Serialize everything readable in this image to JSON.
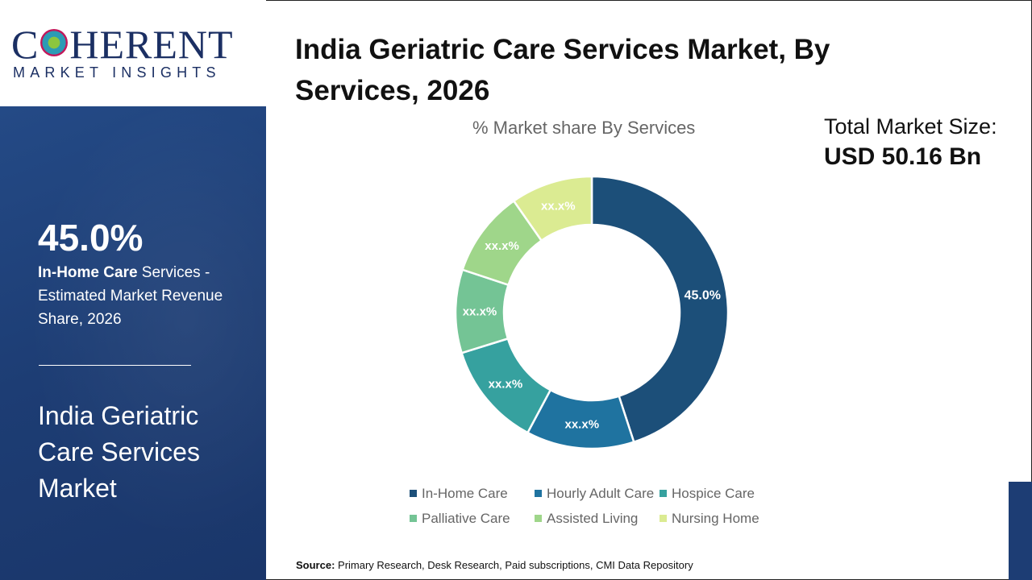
{
  "logo": {
    "top": "COHERENT",
    "bottom": "MARKET INSIGHTS"
  },
  "sidebar": {
    "highlight_value": "45.0%",
    "highlight_segment": "In-Home Care",
    "highlight_rest": " Services - Estimated Market Revenue Share, 2026",
    "market_name": "India Geriatric Care Services Market"
  },
  "header": {
    "title": "India Geriatric Care Services Market, By Services, 2026"
  },
  "total": {
    "label": "Total Market Size:",
    "value": "USD 50.16 Bn"
  },
  "chart_data": {
    "type": "pie",
    "subtype": "donut",
    "title": "% Market share By Services",
    "categories": [
      "In-Home Care",
      "Hourly Adult Care",
      "Hospice Care",
      "Palliative Care",
      "Assisted Living",
      "Nursing Home"
    ],
    "values": [
      45.0,
      12.8,
      12.4,
      9.9,
      10.2,
      9.7
    ],
    "data_labels": [
      "45.0%",
      "xx.x%",
      "xx.x%",
      "xx.x%",
      "xx.x%",
      "xx.x%"
    ],
    "colors": [
      "#1c4f79",
      "#1f73a0",
      "#36a19f",
      "#74c495",
      "#9fd68a",
      "#dbeb92"
    ],
    "legend_position": "bottom"
  },
  "source": {
    "label": "Source:",
    "text": " Primary Research, Desk Research, Paid subscriptions, CMI Data Repository"
  }
}
